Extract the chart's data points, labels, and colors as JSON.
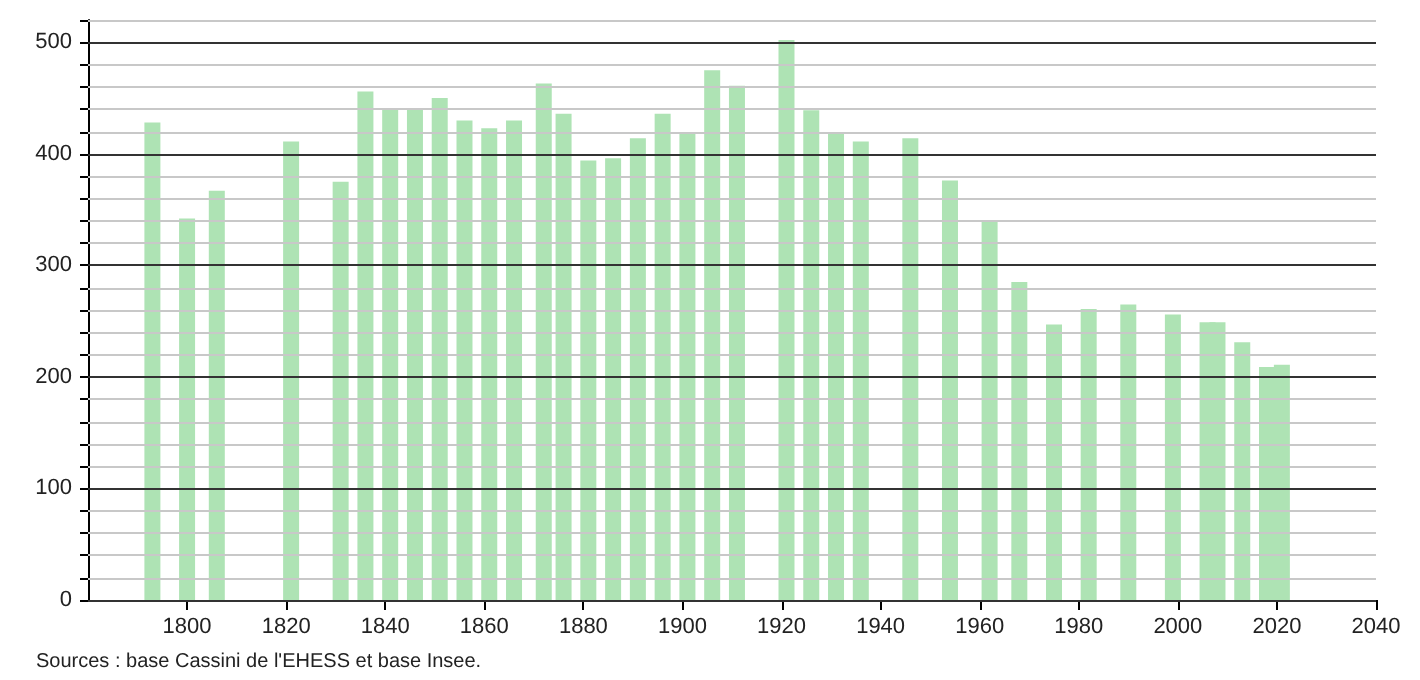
{
  "chart_data": {
    "type": "bar",
    "x": [
      1793,
      1800,
      1806,
      1821,
      1831,
      1836,
      1841,
      1846,
      1851,
      1856,
      1861,
      1866,
      1872,
      1876,
      1881,
      1886,
      1891,
      1896,
      1901,
      1906,
      1911,
      1921,
      1926,
      1931,
      1936,
      1946,
      1954,
      1962,
      1968,
      1975,
      1982,
      1990,
      1999,
      2006,
      2008,
      2013,
      2018,
      2021
    ],
    "values": [
      428,
      342,
      367,
      411,
      375,
      456,
      440,
      440,
      450,
      430,
      423,
      430,
      463,
      436,
      394,
      396,
      414,
      436,
      418,
      475,
      461,
      502,
      439,
      418,
      411,
      414,
      376,
      339,
      285,
      247,
      261,
      265,
      256,
      249,
      249,
      231,
      209,
      211
    ],
    "color": "#aee3b4",
    "xlim": [
      1780,
      2040
    ],
    "xticks": [
      1800,
      1820,
      1840,
      1860,
      1880,
      1900,
      1920,
      1940,
      1960,
      1980,
      2000,
      2020,
      2040
    ],
    "ylim": [
      0,
      520
    ],
    "yticks": [
      0,
      {
        "value": 20,
        "label": null
      },
      {
        "value": 40,
        "label": null
      },
      {
        "value": 60,
        "label": null
      },
      {
        "value": 80,
        "label": null
      },
      100,
      {
        "value": 120,
        "label": null
      },
      {
        "value": 140,
        "label": null
      },
      {
        "value": 160,
        "label": null
      },
      {
        "value": 180,
        "label": null
      },
      200,
      {
        "value": 220,
        "label": null
      },
      {
        "value": 240,
        "label": null
      },
      {
        "value": 260,
        "label": null
      },
      {
        "value": 280,
        "label": null
      },
      300,
      {
        "value": 320,
        "label": null
      },
      {
        "value": 340,
        "label": null
      },
      {
        "value": 360,
        "label": null
      },
      {
        "value": 380,
        "label": null
      },
      400,
      {
        "value": 420,
        "label": null
      },
      {
        "value": 440,
        "label": null
      },
      {
        "value": 460,
        "label": null
      },
      {
        "value": 480,
        "label": null
      },
      500,
      {
        "value": 520,
        "label": null
      }
    ],
    "grid": "y",
    "annotations": [
      "Sources : base Cassini de l'EHESS et base Insee."
    ]
  }
}
